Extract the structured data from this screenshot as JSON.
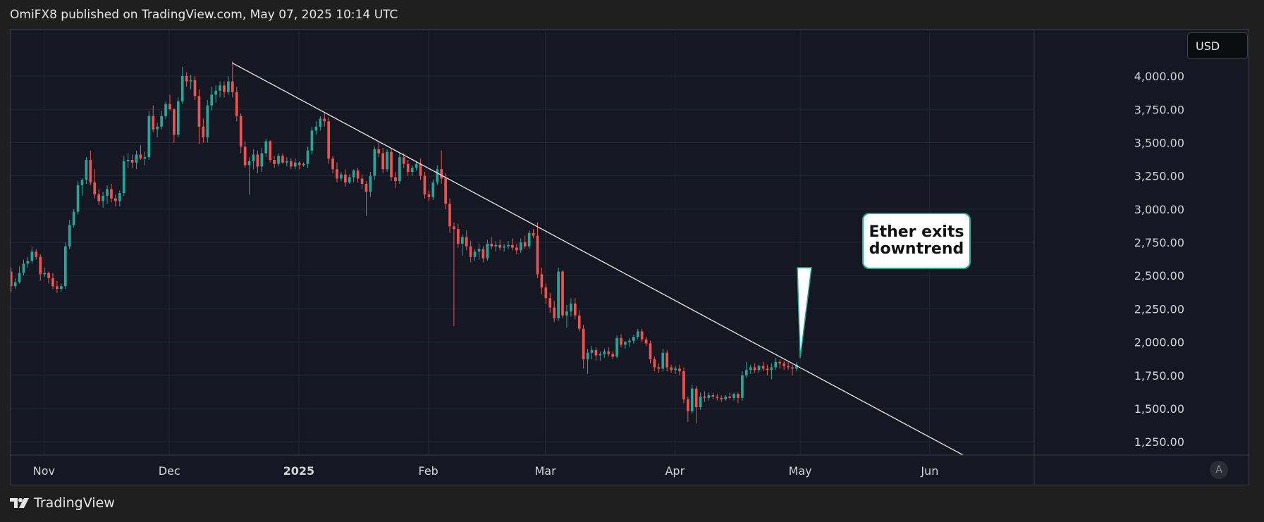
{
  "header": {
    "published_text": "OmiFX8 published on TradingView.com, May 07, 2025 10:14 UTC"
  },
  "currency_badge": "USD",
  "auto_scale_label": "A",
  "footer": {
    "brand": "TradingView"
  },
  "annotation": {
    "line1": "Ether exits",
    "line2": "downtrend"
  },
  "colors": {
    "up": "#26a69a",
    "down": "#ef5350",
    "background": "#151822",
    "grid": "#232733",
    "trendline": "#e8e8e8",
    "callout_border": "#22ab94"
  },
  "chart_data": {
    "type": "candlestick",
    "title": "",
    "xlabel": "",
    "ylabel": "USD",
    "ylim": [
      1150,
      4350
    ],
    "xlim": [
      "2024-10-24",
      "2025-06-26"
    ],
    "y_ticks": [
      {
        "value": 4000,
        "label": "4,000.00"
      },
      {
        "value": 3750,
        "label": "3,750.00"
      },
      {
        "value": 3500,
        "label": "3,500.00"
      },
      {
        "value": 3250,
        "label": "3,250.00"
      },
      {
        "value": 3000,
        "label": "3,000.00"
      },
      {
        "value": 2750,
        "label": "2,750.00"
      },
      {
        "value": 2500,
        "label": "2,500.00"
      },
      {
        "value": 2250,
        "label": "2,250.00"
      },
      {
        "value": 2000,
        "label": "2,000.00"
      },
      {
        "value": 1750,
        "label": "1,750.00"
      },
      {
        "value": 1500,
        "label": "1,500.00"
      },
      {
        "value": 1250,
        "label": "1,250.00"
      }
    ],
    "x_ticks": [
      {
        "date": "2024-11-01",
        "label": "Nov"
      },
      {
        "date": "2024-12-01",
        "label": "Dec"
      },
      {
        "date": "2025-01-01",
        "label": "2025"
      },
      {
        "date": "2025-02-01",
        "label": "Feb"
      },
      {
        "date": "2025-03-01",
        "label": "Mar"
      },
      {
        "date": "2025-04-01",
        "label": "Apr"
      },
      {
        "date": "2025-05-01",
        "label": "May"
      },
      {
        "date": "2025-06-01",
        "label": "Jun"
      }
    ],
    "trendline": {
      "start": {
        "date": "2024-12-16",
        "value": 4100
      },
      "end": {
        "date": "2025-06-09",
        "value": 1150
      }
    },
    "annotation_target": {
      "date": "2025-05-01",
      "value": 1880
    },
    "candles_start_date": "2024-10-24",
    "ohlc": [
      [
        2530,
        2560,
        2380,
        2420
      ],
      [
        2420,
        2480,
        2400,
        2450
      ],
      [
        2450,
        2570,
        2440,
        2520
      ],
      [
        2520,
        2620,
        2500,
        2590
      ],
      [
        2590,
        2640,
        2560,
        2610
      ],
      [
        2610,
        2720,
        2590,
        2680
      ],
      [
        2680,
        2700,
        2620,
        2640
      ],
      [
        2640,
        2660,
        2460,
        2510
      ],
      [
        2510,
        2560,
        2490,
        2520
      ],
      [
        2520,
        2530,
        2440,
        2480
      ],
      [
        2480,
        2520,
        2400,
        2420
      ],
      [
        2420,
        2460,
        2370,
        2400
      ],
      [
        2400,
        2440,
        2380,
        2420
      ],
      [
        2420,
        2750,
        2400,
        2720
      ],
      [
        2720,
        2920,
        2700,
        2880
      ],
      [
        2880,
        3000,
        2860,
        2980
      ],
      [
        2980,
        3210,
        2960,
        3180
      ],
      [
        3180,
        3230,
        3100,
        3220
      ],
      [
        3220,
        3390,
        3190,
        3370
      ],
      [
        3370,
        3440,
        3180,
        3200
      ],
      [
        3200,
        3300,
        3080,
        3110
      ],
      [
        3110,
        3150,
        3030,
        3060
      ],
      [
        3060,
        3130,
        3010,
        3100
      ],
      [
        3100,
        3180,
        3040,
        3150
      ],
      [
        3150,
        3190,
        3050,
        3080
      ],
      [
        3080,
        3110,
        3020,
        3060
      ],
      [
        3060,
        3140,
        3020,
        3120
      ],
      [
        3120,
        3400,
        3100,
        3360
      ],
      [
        3360,
        3420,
        3310,
        3370
      ],
      [
        3370,
        3410,
        3310,
        3350
      ],
      [
        3350,
        3440,
        3300,
        3410
      ],
      [
        3410,
        3480,
        3370,
        3380
      ],
      [
        3380,
        3430,
        3330,
        3390
      ],
      [
        3390,
        3740,
        3370,
        3700
      ],
      [
        3700,
        3780,
        3580,
        3600
      ],
      [
        3600,
        3650,
        3540,
        3620
      ],
      [
        3620,
        3740,
        3600,
        3700
      ],
      [
        3700,
        3810,
        3680,
        3790
      ],
      [
        3790,
        3860,
        3740,
        3750
      ],
      [
        3750,
        3760,
        3500,
        3560
      ],
      [
        3560,
        3840,
        3540,
        3810
      ],
      [
        3810,
        4070,
        3790,
        4000
      ],
      [
        4000,
        4030,
        3920,
        3960
      ],
      [
        3960,
        4010,
        3900,
        3970
      ],
      [
        3970,
        4000,
        3820,
        3850
      ],
      [
        3850,
        3900,
        3490,
        3620
      ],
      [
        3620,
        3680,
        3500,
        3540
      ],
      [
        3540,
        3820,
        3500,
        3780
      ],
      [
        3780,
        3920,
        3740,
        3860
      ],
      [
        3860,
        3930,
        3800,
        3890
      ],
      [
        3890,
        3960,
        3840,
        3930
      ],
      [
        3930,
        3960,
        3840,
        3880
      ],
      [
        3880,
        4000,
        3860,
        3960
      ],
      [
        3960,
        4110,
        3840,
        3880
      ],
      [
        3880,
        3920,
        3660,
        3700
      ],
      [
        3700,
        3720,
        3420,
        3470
      ],
      [
        3470,
        3510,
        3310,
        3330
      ],
      [
        3330,
        3390,
        3110,
        3360
      ],
      [
        3360,
        3450,
        3300,
        3410
      ],
      [
        3410,
        3440,
        3270,
        3320
      ],
      [
        3320,
        3460,
        3280,
        3420
      ],
      [
        3420,
        3530,
        3390,
        3510
      ],
      [
        3510,
        3520,
        3350,
        3370
      ],
      [
        3370,
        3400,
        3310,
        3340
      ],
      [
        3340,
        3420,
        3320,
        3400
      ],
      [
        3400,
        3420,
        3340,
        3350
      ],
      [
        3350,
        3390,
        3320,
        3360
      ],
      [
        3360,
        3380,
        3300,
        3320
      ],
      [
        3320,
        3380,
        3300,
        3350
      ],
      [
        3350,
        3360,
        3300,
        3330
      ],
      [
        3330,
        3350,
        3320,
        3340
      ],
      [
        3340,
        3470,
        3310,
        3440
      ],
      [
        3440,
        3620,
        3410,
        3590
      ],
      [
        3590,
        3660,
        3560,
        3620
      ],
      [
        3620,
        3700,
        3590,
        3680
      ],
      [
        3680,
        3720,
        3620,
        3660
      ],
      [
        3660,
        3690,
        3340,
        3380
      ],
      [
        3380,
        3400,
        3270,
        3300
      ],
      [
        3300,
        3350,
        3200,
        3230
      ],
      [
        3230,
        3280,
        3210,
        3260
      ],
      [
        3260,
        3300,
        3170,
        3200
      ],
      [
        3200,
        3260,
        3190,
        3240
      ],
      [
        3240,
        3300,
        3200,
        3290
      ],
      [
        3290,
        3310,
        3200,
        3230
      ],
      [
        3230,
        3260,
        3150,
        3190
      ],
      [
        3190,
        3210,
        2950,
        3130
      ],
      [
        3130,
        3280,
        3090,
        3250
      ],
      [
        3250,
        3470,
        3220,
        3450
      ],
      [
        3450,
        3500,
        3390,
        3420
      ],
      [
        3420,
        3460,
        3270,
        3300
      ],
      [
        3300,
        3450,
        3280,
        3430
      ],
      [
        3430,
        3460,
        3210,
        3240
      ],
      [
        3240,
        3280,
        3160,
        3210
      ],
      [
        3210,
        3420,
        3190,
        3390
      ],
      [
        3390,
        3420,
        3310,
        3340
      ],
      [
        3340,
        3370,
        3250,
        3280
      ],
      [
        3280,
        3330,
        3250,
        3310
      ],
      [
        3310,
        3360,
        3290,
        3340
      ],
      [
        3340,
        3380,
        3220,
        3250
      ],
      [
        3250,
        3280,
        3080,
        3110
      ],
      [
        3110,
        3140,
        3060,
        3090
      ],
      [
        3090,
        3220,
        3070,
        3200
      ],
      [
        3200,
        3330,
        3180,
        3300
      ],
      [
        3300,
        3440,
        3190,
        3230
      ],
      [
        3230,
        3270,
        3000,
        3040
      ],
      [
        3040,
        3080,
        2820,
        2870
      ],
      [
        2870,
        2900,
        2120,
        2850
      ],
      [
        2850,
        2890,
        2710,
        2740
      ],
      [
        2740,
        2810,
        2650,
        2790
      ],
      [
        2790,
        2840,
        2690,
        2720
      ],
      [
        2720,
        2760,
        2600,
        2640
      ],
      [
        2640,
        2700,
        2610,
        2680
      ],
      [
        2680,
        2740,
        2620,
        2700
      ],
      [
        2700,
        2720,
        2600,
        2630
      ],
      [
        2630,
        2770,
        2610,
        2740
      ],
      [
        2740,
        2790,
        2700,
        2720
      ],
      [
        2720,
        2760,
        2680,
        2730
      ],
      [
        2730,
        2770,
        2690,
        2710
      ],
      [
        2710,
        2740,
        2680,
        2720
      ],
      [
        2720,
        2760,
        2700,
        2730
      ],
      [
        2730,
        2780,
        2690,
        2710
      ],
      [
        2710,
        2740,
        2660,
        2690
      ],
      [
        2690,
        2780,
        2670,
        2750
      ],
      [
        2750,
        2800,
        2700,
        2720
      ],
      [
        2720,
        2840,
        2700,
        2820
      ],
      [
        2820,
        2850,
        2780,
        2800
      ],
      [
        2800,
        2900,
        2480,
        2510
      ],
      [
        2510,
        2560,
        2360,
        2410
      ],
      [
        2410,
        2440,
        2290,
        2330
      ],
      [
        2330,
        2370,
        2220,
        2260
      ],
      [
        2260,
        2310,
        2150,
        2180
      ],
      [
        2180,
        2560,
        2160,
        2530
      ],
      [
        2530,
        2540,
        2180,
        2200
      ],
      [
        2200,
        2280,
        2110,
        2230
      ],
      [
        2230,
        2330,
        2190,
        2290
      ],
      [
        2290,
        2330,
        2170,
        2200
      ],
      [
        2200,
        2240,
        2080,
        2100
      ],
      [
        2100,
        2130,
        1800,
        1870
      ],
      [
        1870,
        1950,
        1760,
        1920
      ],
      [
        1920,
        1970,
        1870,
        1940
      ],
      [
        1940,
        1960,
        1860,
        1900
      ],
      [
        1900,
        1930,
        1860,
        1910
      ],
      [
        1910,
        1950,
        1880,
        1930
      ],
      [
        1930,
        1960,
        1890,
        1910
      ],
      [
        1910,
        1930,
        1870,
        1890
      ],
      [
        1890,
        2050,
        1880,
        2030
      ],
      [
        2030,
        2060,
        1960,
        1980
      ],
      [
        1980,
        2010,
        1950,
        2000
      ],
      [
        2000,
        2030,
        1960,
        2010
      ],
      [
        2010,
        2050,
        1990,
        2040
      ],
      [
        2040,
        2100,
        2020,
        2080
      ],
      [
        2080,
        2100,
        2000,
        2020
      ],
      [
        2020,
        2040,
        1970,
        1990
      ],
      [
        1990,
        2010,
        1840,
        1870
      ],
      [
        1870,
        1890,
        1780,
        1810
      ],
      [
        1810,
        1840,
        1770,
        1800
      ],
      [
        1800,
        1950,
        1780,
        1920
      ],
      [
        1920,
        1940,
        1780,
        1810
      ],
      [
        1810,
        1830,
        1770,
        1790
      ],
      [
        1790,
        1820,
        1760,
        1800
      ],
      [
        1800,
        1830,
        1750,
        1780
      ],
      [
        1780,
        1810,
        1540,
        1570
      ],
      [
        1570,
        1590,
        1400,
        1480
      ],
      [
        1480,
        1680,
        1460,
        1650
      ],
      [
        1650,
        1670,
        1390,
        1510
      ],
      [
        1510,
        1620,
        1490,
        1590
      ],
      [
        1590,
        1630,
        1550,
        1580
      ],
      [
        1580,
        1620,
        1560,
        1600
      ],
      [
        1600,
        1620,
        1570,
        1590
      ],
      [
        1590,
        1610,
        1560,
        1580
      ],
      [
        1580,
        1600,
        1550,
        1570
      ],
      [
        1570,
        1600,
        1560,
        1590
      ],
      [
        1590,
        1620,
        1570,
        1580
      ],
      [
        1580,
        1620,
        1560,
        1610
      ],
      [
        1610,
        1620,
        1540,
        1580
      ],
      [
        1580,
        1780,
        1560,
        1750
      ],
      [
        1750,
        1850,
        1730,
        1790
      ],
      [
        1790,
        1830,
        1760,
        1810
      ],
      [
        1810,
        1840,
        1770,
        1790
      ],
      [
        1790,
        1830,
        1770,
        1820
      ],
      [
        1820,
        1850,
        1780,
        1800
      ],
      [
        1800,
        1830,
        1750,
        1790
      ],
      [
        1790,
        1840,
        1720,
        1810
      ],
      [
        1810,
        1880,
        1790,
        1850
      ],
      [
        1850,
        1870,
        1800,
        1840
      ],
      [
        1840,
        1860,
        1790,
        1820
      ],
      [
        1820,
        1850,
        1790,
        1810
      ],
      [
        1810,
        1830,
        1750,
        1800
      ],
      [
        1800,
        1850,
        1780,
        1830
      ]
    ]
  }
}
